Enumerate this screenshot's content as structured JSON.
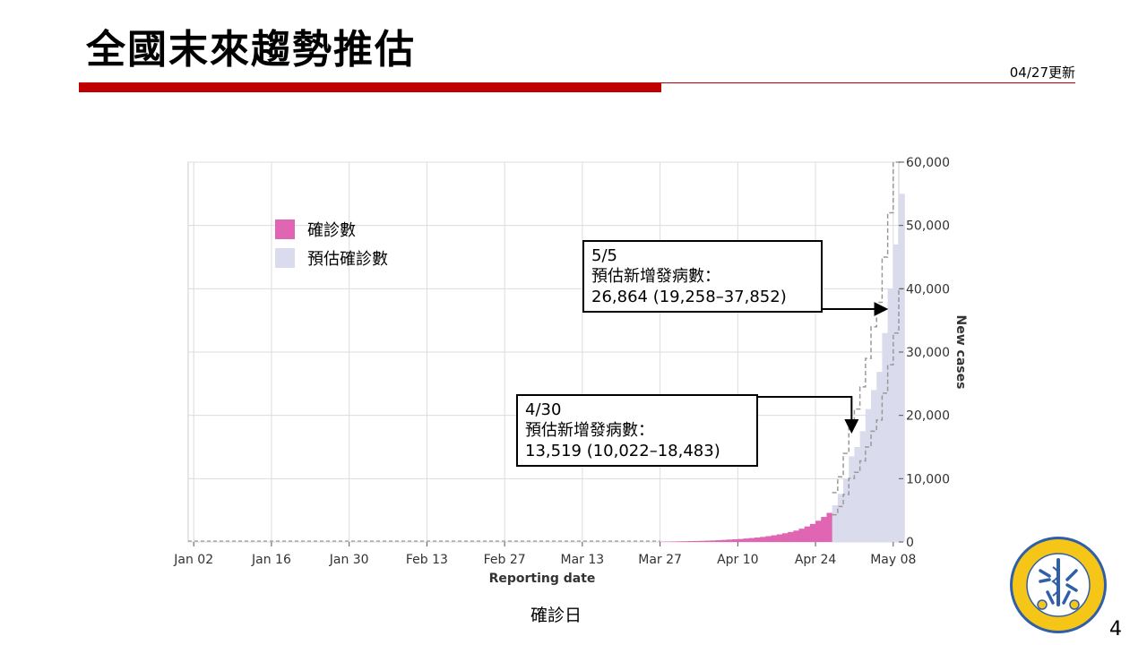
{
  "slide": {
    "title": "全國末來趨勢推估",
    "update_date": "04/27更新",
    "x_caption": "確診日",
    "page_number": "4"
  },
  "legend": {
    "items": [
      {
        "label": "確診數",
        "color": "#e065b2"
      },
      {
        "label": "預估確診數",
        "color": "#dadbec"
      }
    ]
  },
  "callouts": [
    {
      "date": "5/5",
      "label": "預估新增發病數：",
      "value": "26,864 (19,258–37,852)"
    },
    {
      "date": "4/30",
      "label": "預估新增發病數：",
      "value": "13,519 (10,022–18,483)"
    }
  ],
  "chart_data": {
    "type": "bar",
    "xlabel": "Reporting date",
    "ylabel": "New cases",
    "x_range": [
      "2022-01-01",
      "2022-05-09"
    ],
    "ylim": [
      0,
      60000
    ],
    "y_ticks": [
      0,
      10000,
      20000,
      30000,
      40000,
      50000,
      60000
    ],
    "y_tick_labels": [
      "0",
      "10,000",
      "20,000",
      "30,000",
      "40,000",
      "50,000",
      "60,000"
    ],
    "x_tick_dates": [
      "2022-01-02",
      "2022-01-16",
      "2022-01-30",
      "2022-02-13",
      "2022-02-27",
      "2022-03-13",
      "2022-03-27",
      "2022-04-10",
      "2022-04-24",
      "2022-05-08"
    ],
    "x_tick_labels": [
      "Jan 02",
      "Jan 16",
      "Jan 30",
      "Feb 13",
      "Feb 27",
      "Mar 13",
      "Mar 27",
      "Apr 10",
      "Apr 24",
      "May 08"
    ],
    "grid": true,
    "legend_position": "top-left",
    "colors": {
      "confirmed": "#e065b2",
      "projected": "#dadbec",
      "interval": "#9a9a9a"
    },
    "series": [
      {
        "name": "確診數",
        "dates": [
          "2022-03-27",
          "2022-03-28",
          "2022-03-29",
          "2022-03-30",
          "2022-03-31",
          "2022-04-01",
          "2022-04-02",
          "2022-04-03",
          "2022-04-04",
          "2022-04-05",
          "2022-04-06",
          "2022-04-07",
          "2022-04-08",
          "2022-04-09",
          "2022-04-10",
          "2022-04-11",
          "2022-04-12",
          "2022-04-13",
          "2022-04-14",
          "2022-04-15",
          "2022-04-16",
          "2022-04-17",
          "2022-04-18",
          "2022-04-19",
          "2022-04-20",
          "2022-04-21",
          "2022-04-22",
          "2022-04-23",
          "2022-04-24",
          "2022-04-25",
          "2022-04-26"
        ],
        "values": [
          50,
          60,
          80,
          100,
          120,
          140,
          160,
          180,
          210,
          240,
          280,
          330,
          380,
          430,
          480,
          550,
          620,
          700,
          800,
          920,
          1050,
          1200,
          1380,
          1580,
          1800,
          2100,
          2450,
          2850,
          3350,
          3950,
          4600
        ]
      },
      {
        "name": "預估確診數",
        "dates": [
          "2022-04-27",
          "2022-04-28",
          "2022-04-29",
          "2022-04-30",
          "2022-05-01",
          "2022-05-02",
          "2022-05-03",
          "2022-05-04",
          "2022-05-05",
          "2022-05-06",
          "2022-05-07",
          "2022-05-08",
          "2022-05-09"
        ],
        "values": [
          5800,
          7600,
          10000,
          13519,
          15000,
          17500,
          21000,
          24000,
          26864,
          33000,
          40000,
          47000,
          55000
        ],
        "lower": [
          4300,
          5600,
          7500,
          10022,
          11000,
          12800,
          15000,
          17500,
          19258,
          23500,
          28000,
          33000,
          40000
        ],
        "upper": [
          7800,
          10300,
          14000,
          18483,
          21000,
          24500,
          29000,
          34000,
          37852,
          45000,
          52000,
          60000,
          68000
        ]
      }
    ]
  }
}
